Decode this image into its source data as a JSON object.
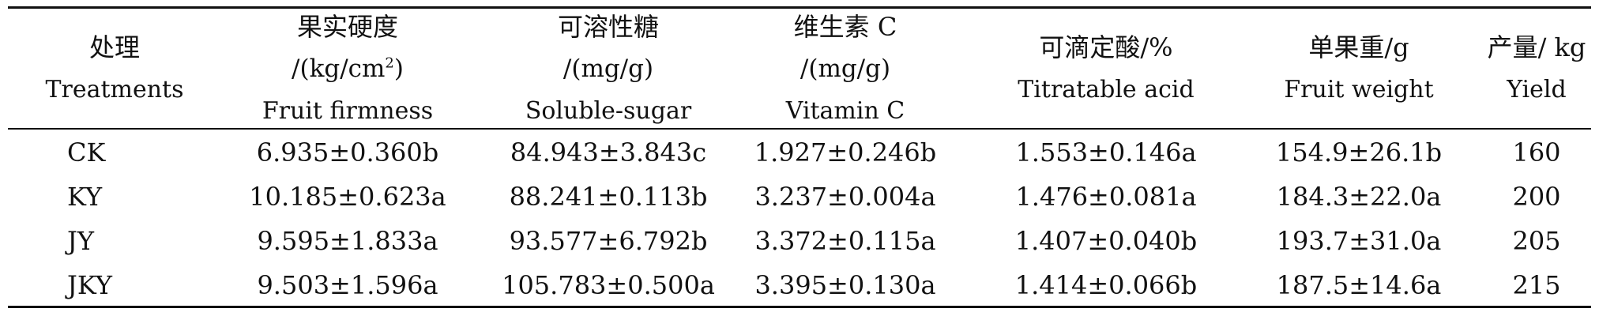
{
  "headers": [
    {
      "key": "treatment",
      "lines": [
        "处理",
        "Treatments"
      ]
    },
    {
      "key": "firmness",
      "lines": [
        "果实硬度",
        "/(kg/cm",
        "Fruit firmness"
      ],
      "sup": "2",
      "after_sup": ")"
    },
    {
      "key": "sugar",
      "lines": [
        "可溶性糖",
        "/(mg/g)",
        "Soluble-sugar"
      ]
    },
    {
      "key": "vitc",
      "lines": [
        "维生素 C",
        "/(mg/g)",
        "Vitamin C"
      ]
    },
    {
      "key": "acid",
      "lines": [
        "可滴定酸/%",
        "Titratable acid"
      ]
    },
    {
      "key": "weight",
      "lines": [
        "单果重/g",
        "Fruit weight"
      ]
    },
    {
      "key": "yield",
      "lines": [
        "产量/ kg",
        "Yield"
      ]
    }
  ],
  "rows": [
    [
      "CK",
      "6.935±0.360b",
      "84.943±3.843c",
      "1.927±0.246b",
      "1.553±0.146a",
      "154.9±26.1b",
      "160"
    ],
    [
      "KY",
      "10.185±0.623a",
      "88.241±0.113b",
      "3.237±0.004a",
      "1.476±0.081a",
      "184.3±22.0a",
      "200"
    ],
    [
      "JY",
      "9.595±1.833a",
      "93.577±6.792b",
      "3.372±0.115a",
      "1.407±0.040b",
      "193.7±31.0a",
      "205"
    ],
    [
      "JKY",
      "9.503±1.596a",
      "105.783±0.500a",
      "3.395±0.130a",
      "1.414±0.066b",
      "187.5±14.6a",
      "215"
    ]
  ]
}
